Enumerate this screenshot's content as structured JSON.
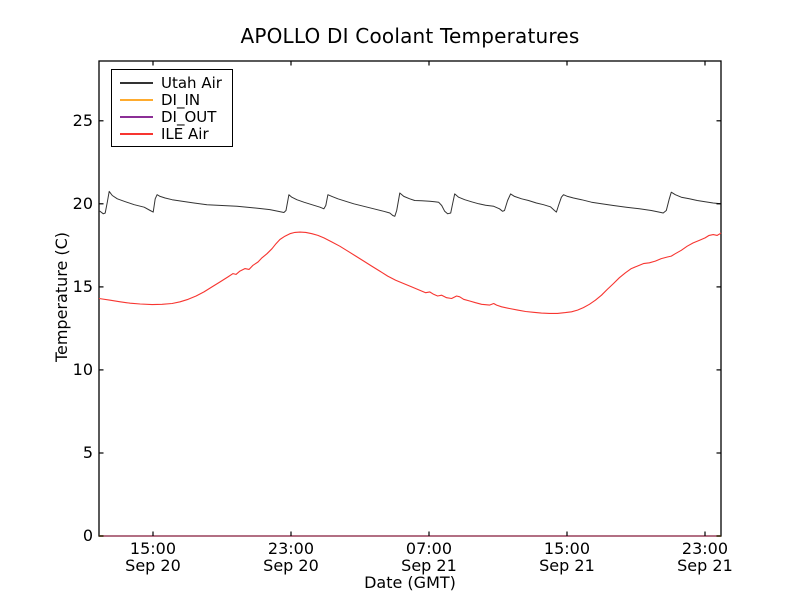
{
  "figure": {
    "background": "#ffffff",
    "axis_color": "#000000"
  },
  "chart_data": {
    "type": "line",
    "title": "APOLLO DI Coolant Temperatures",
    "xlabel": "Date (GMT)",
    "ylabel": "Temperature (C)",
    "x_unit": "hours since Sep 20 00:00 GMT",
    "xlim": [
      11.87,
      47.93
    ],
    "ylim": [
      0,
      28.6
    ],
    "grid": false,
    "legend_position": "upper left",
    "xticks": [
      {
        "t": 15,
        "line1": "15:00",
        "line2": "Sep 20"
      },
      {
        "t": 23,
        "line1": "23:00",
        "line2": "Sep 20"
      },
      {
        "t": 31,
        "line1": "07:00",
        "line2": "Sep 21"
      },
      {
        "t": 39,
        "line1": "15:00",
        "line2": "Sep 21"
      },
      {
        "t": 47,
        "line1": "23:00",
        "line2": "Sep 21"
      }
    ],
    "yticks": [
      0,
      5,
      10,
      15,
      20,
      25
    ],
    "series": [
      {
        "name": "Utah Air",
        "color": "#333333",
        "width": 1.0,
        "points": [
          [
            11.87,
            19.6
          ],
          [
            12.12,
            19.4
          ],
          [
            12.23,
            19.45
          ],
          [
            12.35,
            20.1
          ],
          [
            12.46,
            20.75
          ],
          [
            12.64,
            20.5
          ],
          [
            12.93,
            20.3
          ],
          [
            13.33,
            20.15
          ],
          [
            13.91,
            19.95
          ],
          [
            14.49,
            19.8
          ],
          [
            14.84,
            19.6
          ],
          [
            15.01,
            19.5
          ],
          [
            15.13,
            20.3
          ],
          [
            15.24,
            20.55
          ],
          [
            15.41,
            20.45
          ],
          [
            15.7,
            20.35
          ],
          [
            16.11,
            20.25
          ],
          [
            16.69,
            20.15
          ],
          [
            17.38,
            20.05
          ],
          [
            18.13,
            19.95
          ],
          [
            19.0,
            19.9
          ],
          [
            19.87,
            19.85
          ],
          [
            20.62,
            19.78
          ],
          [
            21.2,
            19.72
          ],
          [
            21.78,
            19.65
          ],
          [
            22.24,
            19.55
          ],
          [
            22.59,
            19.48
          ],
          [
            22.71,
            19.6
          ],
          [
            22.88,
            20.55
          ],
          [
            23.05,
            20.4
          ],
          [
            23.34,
            20.25
          ],
          [
            23.75,
            20.1
          ],
          [
            24.21,
            19.95
          ],
          [
            24.68,
            19.8
          ],
          [
            24.91,
            19.7
          ],
          [
            25.02,
            19.9
          ],
          [
            25.14,
            20.55
          ],
          [
            25.37,
            20.45
          ],
          [
            25.72,
            20.3
          ],
          [
            26.18,
            20.15
          ],
          [
            26.64,
            20.0
          ],
          [
            27.22,
            19.85
          ],
          [
            27.8,
            19.7
          ],
          [
            28.38,
            19.55
          ],
          [
            28.73,
            19.45
          ],
          [
            28.9,
            19.3
          ],
          [
            29.02,
            19.25
          ],
          [
            29.13,
            19.6
          ],
          [
            29.31,
            20.65
          ],
          [
            29.54,
            20.45
          ],
          [
            29.88,
            20.3
          ],
          [
            30.17,
            20.2
          ],
          [
            30.58,
            20.18
          ],
          [
            31.04,
            20.15
          ],
          [
            31.33,
            20.12
          ],
          [
            31.56,
            20.1
          ],
          [
            31.74,
            19.9
          ],
          [
            31.91,
            19.55
          ],
          [
            32.08,
            19.4
          ],
          [
            32.26,
            19.45
          ],
          [
            32.37,
            20.0
          ],
          [
            32.49,
            20.6
          ],
          [
            32.72,
            20.4
          ],
          [
            33.07,
            20.25
          ],
          [
            33.47,
            20.12
          ],
          [
            33.88,
            20.0
          ],
          [
            34.28,
            19.92
          ],
          [
            34.75,
            19.85
          ],
          [
            35.09,
            19.7
          ],
          [
            35.27,
            19.55
          ],
          [
            35.38,
            19.6
          ],
          [
            35.56,
            20.2
          ],
          [
            35.73,
            20.6
          ],
          [
            35.96,
            20.45
          ],
          [
            36.37,
            20.3
          ],
          [
            36.77,
            20.2
          ],
          [
            37.23,
            20.05
          ],
          [
            37.64,
            19.95
          ],
          [
            38.04,
            19.82
          ],
          [
            38.28,
            19.6
          ],
          [
            38.39,
            19.5
          ],
          [
            38.51,
            19.9
          ],
          [
            38.68,
            20.4
          ],
          [
            38.8,
            20.55
          ],
          [
            39.03,
            20.45
          ],
          [
            39.38,
            20.35
          ],
          [
            39.84,
            20.25
          ],
          [
            40.42,
            20.1
          ],
          [
            41.0,
            20.0
          ],
          [
            41.69,
            19.9
          ],
          [
            42.44,
            19.8
          ],
          [
            43.2,
            19.7
          ],
          [
            43.89,
            19.6
          ],
          [
            44.35,
            19.5
          ],
          [
            44.58,
            19.45
          ],
          [
            44.76,
            19.6
          ],
          [
            44.93,
            20.3
          ],
          [
            45.05,
            20.7
          ],
          [
            45.28,
            20.55
          ],
          [
            45.63,
            20.4
          ],
          [
            46.09,
            20.3
          ],
          [
            46.55,
            20.2
          ],
          [
            47.01,
            20.12
          ],
          [
            47.48,
            20.05
          ],
          [
            47.93,
            20.0
          ]
        ]
      },
      {
        "name": "DI_IN",
        "color": "#feab2e",
        "width": 1.5,
        "points": [
          [
            11.87,
            0
          ],
          [
            47.93,
            0
          ]
        ]
      },
      {
        "name": "DI_OUT",
        "color": "#8c2f96",
        "width": 1.1,
        "points": [
          [
            11.87,
            0
          ],
          [
            47.93,
            0
          ]
        ]
      },
      {
        "name": "ILE Air",
        "color": "#f73530",
        "width": 1.1,
        "points": [
          [
            11.87,
            14.3
          ],
          [
            12.52,
            14.2
          ],
          [
            13.1,
            14.1
          ],
          [
            13.68,
            14.02
          ],
          [
            14.26,
            13.97
          ],
          [
            14.95,
            13.93
          ],
          [
            15.53,
            13.95
          ],
          [
            16.11,
            14.0
          ],
          [
            16.57,
            14.1
          ],
          [
            17.04,
            14.25
          ],
          [
            17.5,
            14.45
          ],
          [
            17.96,
            14.7
          ],
          [
            18.42,
            15.0
          ],
          [
            18.89,
            15.3
          ],
          [
            19.35,
            15.6
          ],
          [
            19.64,
            15.8
          ],
          [
            19.81,
            15.75
          ],
          [
            20.04,
            15.95
          ],
          [
            20.33,
            16.1
          ],
          [
            20.57,
            16.05
          ],
          [
            20.8,
            16.3
          ],
          [
            21.09,
            16.5
          ],
          [
            21.32,
            16.75
          ],
          [
            21.61,
            17.0
          ],
          [
            21.9,
            17.3
          ],
          [
            22.13,
            17.6
          ],
          [
            22.36,
            17.85
          ],
          [
            22.65,
            18.05
          ],
          [
            22.94,
            18.2
          ],
          [
            23.23,
            18.28
          ],
          [
            23.52,
            18.3
          ],
          [
            23.86,
            18.28
          ],
          [
            24.21,
            18.2
          ],
          [
            24.56,
            18.1
          ],
          [
            24.91,
            17.95
          ],
          [
            25.37,
            17.7
          ],
          [
            25.83,
            17.45
          ],
          [
            26.3,
            17.15
          ],
          [
            26.76,
            16.85
          ],
          [
            27.22,
            16.55
          ],
          [
            27.68,
            16.25
          ],
          [
            28.15,
            15.95
          ],
          [
            28.61,
            15.65
          ],
          [
            29.07,
            15.4
          ],
          [
            29.54,
            15.2
          ],
          [
            30.0,
            15.0
          ],
          [
            30.46,
            14.8
          ],
          [
            30.81,
            14.65
          ],
          [
            31.04,
            14.7
          ],
          [
            31.27,
            14.55
          ],
          [
            31.5,
            14.45
          ],
          [
            31.74,
            14.5
          ],
          [
            32.02,
            14.35
          ],
          [
            32.31,
            14.3
          ],
          [
            32.6,
            14.45
          ],
          [
            32.78,
            14.4
          ],
          [
            33.01,
            14.25
          ],
          [
            33.36,
            14.15
          ],
          [
            33.7,
            14.05
          ],
          [
            34.05,
            13.95
          ],
          [
            34.51,
            13.9
          ],
          [
            34.75,
            14.0
          ],
          [
            34.92,
            13.9
          ],
          [
            35.21,
            13.8
          ],
          [
            35.67,
            13.7
          ],
          [
            36.14,
            13.6
          ],
          [
            36.6,
            13.52
          ],
          [
            37.06,
            13.47
          ],
          [
            37.52,
            13.42
          ],
          [
            37.99,
            13.4
          ],
          [
            38.45,
            13.4
          ],
          [
            38.91,
            13.45
          ],
          [
            39.26,
            13.5
          ],
          [
            39.61,
            13.6
          ],
          [
            39.95,
            13.75
          ],
          [
            40.3,
            13.95
          ],
          [
            40.65,
            14.2
          ],
          [
            41.0,
            14.5
          ],
          [
            41.34,
            14.85
          ],
          [
            41.69,
            15.2
          ],
          [
            42.04,
            15.55
          ],
          [
            42.39,
            15.85
          ],
          [
            42.73,
            16.1
          ],
          [
            43.08,
            16.25
          ],
          [
            43.43,
            16.4
          ],
          [
            43.78,
            16.45
          ],
          [
            44.12,
            16.55
          ],
          [
            44.47,
            16.7
          ],
          [
            44.82,
            16.8
          ],
          [
            45.05,
            16.85
          ],
          [
            45.28,
            17.0
          ],
          [
            45.63,
            17.2
          ],
          [
            45.97,
            17.45
          ],
          [
            46.32,
            17.65
          ],
          [
            46.67,
            17.8
          ],
          [
            47.01,
            17.95
          ],
          [
            47.24,
            18.1
          ],
          [
            47.48,
            18.15
          ],
          [
            47.71,
            18.1
          ],
          [
            47.88,
            18.2
          ],
          [
            47.93,
            18.25
          ]
        ]
      }
    ]
  }
}
